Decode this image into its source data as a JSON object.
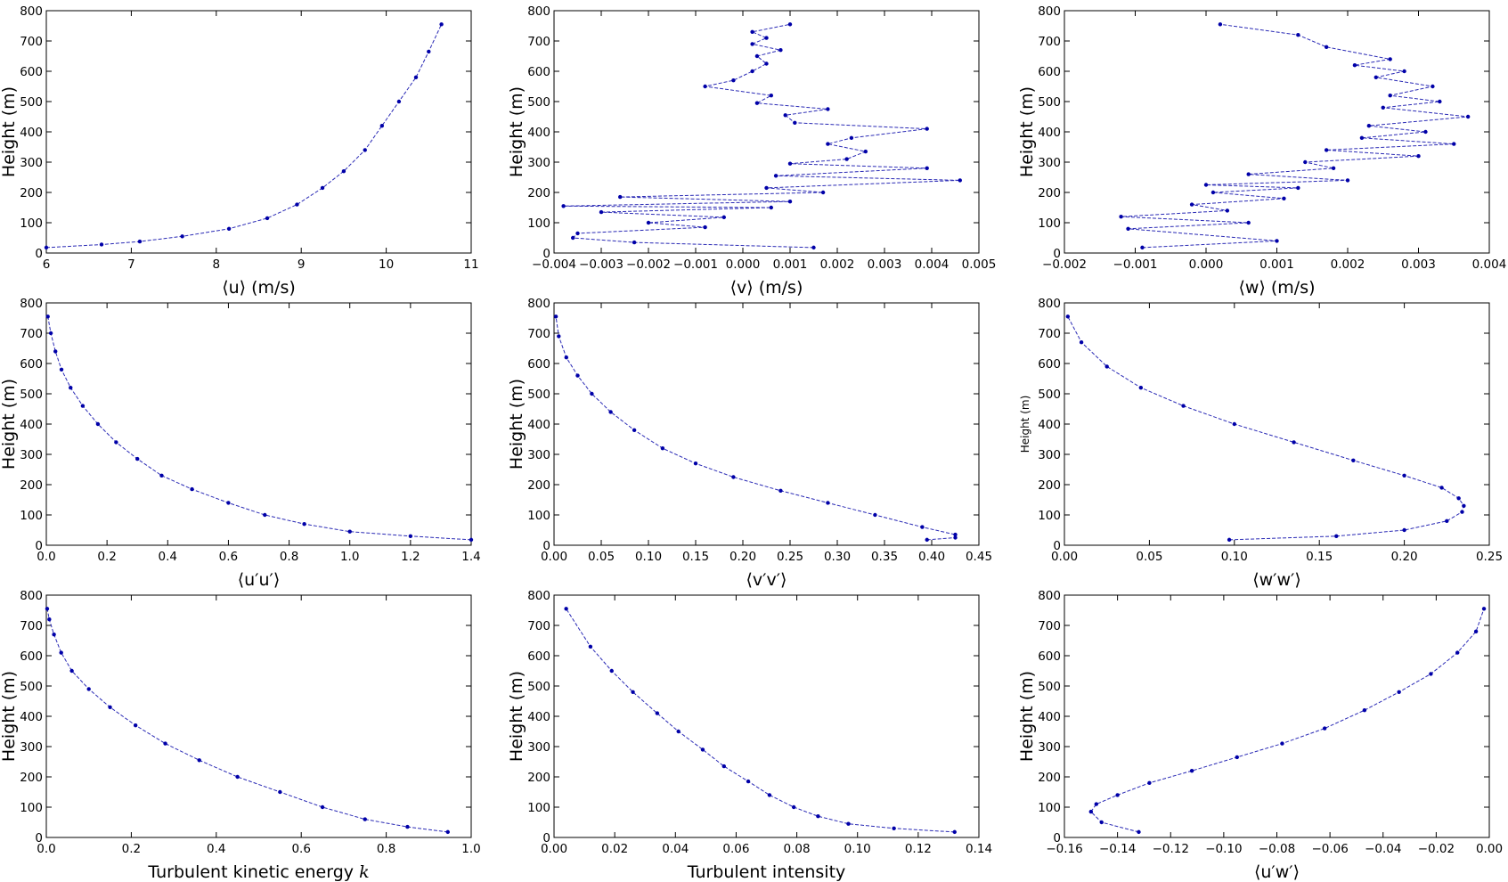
{
  "figure": {
    "description_free": true
  },
  "chart_data": [
    {
      "type": "line",
      "xlabel": "⟨u⟩ (m/s)",
      "ylabel": "Height (m)",
      "xlim": [
        6,
        11
      ],
      "ylim": [
        0,
        800
      ],
      "xticks": [
        "6",
        "7",
        "8",
        "9",
        "10",
        "11"
      ],
      "yticks": [
        "0",
        "100",
        "200",
        "300",
        "400",
        "500",
        "600",
        "700",
        "800"
      ],
      "x": [
        6.0,
        6.65,
        7.1,
        7.6,
        8.15,
        8.6,
        8.95,
        9.25,
        9.5,
        9.75,
        9.95,
        10.15,
        10.35,
        10.5,
        10.65
      ],
      "y": [
        18,
        28,
        38,
        55,
        80,
        115,
        160,
        215,
        270,
        340,
        420,
        500,
        580,
        665,
        755
      ]
    },
    {
      "type": "line",
      "xlabel": "⟨v⟩ (m/s)",
      "ylabel": "Height (m)",
      "xlim": [
        -0.004,
        0.005
      ],
      "ylim": [
        0,
        800
      ],
      "xticks": [
        "−0.004",
        "−0.003",
        "−0.002",
        "−0.001",
        "0.000",
        "0.001",
        "0.002",
        "0.003",
        "0.004",
        "0.005"
      ],
      "yticks": [
        "0",
        "100",
        "200",
        "300",
        "400",
        "500",
        "600",
        "700",
        "800"
      ],
      "x": [
        0.0015,
        -0.0023,
        -0.0036,
        -0.0035,
        -0.0008,
        -0.002,
        -0.0004,
        -0.003,
        0.0006,
        -0.0038,
        0.001,
        -0.0026,
        0.0017,
        0.0005,
        0.0046,
        0.0007,
        0.0039,
        0.001,
        0.0022,
        0.0026,
        0.0018,
        0.0023,
        0.0039,
        0.0011,
        0.0009,
        0.0018,
        0.0003,
        0.0006,
        -0.0008,
        -0.0002,
        0.0002,
        0.0005,
        0.0003,
        0.0008,
        0.0002,
        0.0005,
        0.0002,
        0.001
      ],
      "y": [
        18,
        35,
        50,
        65,
        85,
        100,
        118,
        135,
        150,
        155,
        170,
        185,
        200,
        215,
        240,
        255,
        280,
        295,
        310,
        335,
        360,
        380,
        410,
        430,
        455,
        475,
        495,
        520,
        550,
        570,
        600,
        625,
        650,
        670,
        690,
        710,
        730,
        755
      ]
    },
    {
      "type": "line",
      "xlabel": "⟨w⟩ (m/s)",
      "ylabel": "Height (m)",
      "xlim": [
        -0.002,
        0.004
      ],
      "ylim": [
        0,
        800
      ],
      "xticks": [
        "−0.002",
        "−0.001",
        "0.000",
        "0.001",
        "0.002",
        "0.003",
        "0.004"
      ],
      "yticks": [
        "0",
        "100",
        "200",
        "300",
        "400",
        "500",
        "600",
        "700",
        "800"
      ],
      "x": [
        -0.0009,
        0.001,
        -0.0011,
        0.0006,
        -0.0012,
        0.0003,
        -0.0002,
        0.0011,
        0.0001,
        0.0013,
        0.0,
        0.002,
        0.0006,
        0.0018,
        0.0014,
        0.003,
        0.0017,
        0.0035,
        0.0022,
        0.0031,
        0.0023,
        0.0037,
        0.0025,
        0.0033,
        0.0026,
        0.0032,
        0.0024,
        0.0028,
        0.0021,
        0.0026,
        0.0017,
        0.0013,
        0.0002
      ],
      "y": [
        18,
        40,
        80,
        100,
        120,
        140,
        160,
        180,
        200,
        215,
        225,
        240,
        260,
        280,
        300,
        320,
        340,
        360,
        380,
        400,
        420,
        450,
        480,
        500,
        520,
        550,
        580,
        600,
        620,
        640,
        680,
        720,
        755
      ]
    },
    {
      "type": "line",
      "xlabel": "⟨u′u′⟩",
      "ylabel": "Height (m)",
      "xlim": [
        0.0,
        1.4
      ],
      "ylim": [
        0,
        800
      ],
      "xticks": [
        "0.0",
        "0.2",
        "0.4",
        "0.6",
        "0.8",
        "1.0",
        "1.2",
        "1.4"
      ],
      "yticks": [
        "0",
        "100",
        "200",
        "300",
        "400",
        "500",
        "600",
        "700",
        "800"
      ],
      "x": [
        1.4,
        1.2,
        1.0,
        0.85,
        0.72,
        0.6,
        0.48,
        0.38,
        0.3,
        0.23,
        0.17,
        0.12,
        0.08,
        0.05,
        0.03,
        0.015,
        0.005
      ],
      "y": [
        18,
        30,
        45,
        70,
        100,
        140,
        185,
        230,
        285,
        340,
        400,
        460,
        520,
        580,
        640,
        700,
        755
      ]
    },
    {
      "type": "line",
      "xlabel": "⟨v′v′⟩",
      "ylabel": "Height (m)",
      "xlim": [
        0.0,
        0.45
      ],
      "ylim": [
        0,
        800
      ],
      "xticks": [
        "0.00",
        "0.05",
        "0.10",
        "0.15",
        "0.20",
        "0.25",
        "0.30",
        "0.35",
        "0.40",
        "0.45"
      ],
      "yticks": [
        "0",
        "100",
        "200",
        "300",
        "400",
        "500",
        "600",
        "700",
        "800"
      ],
      "x": [
        0.395,
        0.425,
        0.425,
        0.39,
        0.34,
        0.29,
        0.24,
        0.19,
        0.15,
        0.115,
        0.085,
        0.06,
        0.04,
        0.025,
        0.013,
        0.005,
        0.002
      ],
      "y": [
        18,
        25,
        35,
        60,
        100,
        140,
        180,
        225,
        270,
        320,
        380,
        440,
        500,
        560,
        620,
        690,
        755
      ]
    },
    {
      "type": "line",
      "xlabel": "⟨w′w′⟩",
      "ylabel": "Height (m)",
      "xlim": [
        0.0,
        0.25
      ],
      "ylim": [
        0,
        800
      ],
      "xticks": [
        "0.00",
        "0.05",
        "0.10",
        "0.15",
        "0.20",
        "0.25"
      ],
      "yticks": [
        "0",
        "100",
        "200",
        "300",
        "400",
        "500",
        "600",
        "700",
        "800"
      ],
      "x": [
        0.097,
        0.16,
        0.2,
        0.225,
        0.234,
        0.235,
        0.232,
        0.222,
        0.2,
        0.17,
        0.135,
        0.1,
        0.07,
        0.045,
        0.025,
        0.01,
        0.002
      ],
      "y": [
        18,
        30,
        50,
        80,
        110,
        130,
        155,
        190,
        230,
        280,
        340,
        400,
        460,
        520,
        590,
        670,
        755
      ]
    },
    {
      "type": "line",
      "xlabel": "Turbulent kinetic energy ",
      "xlabel_var": "k",
      "ylabel": "Height (m)",
      "xlim": [
        0.0,
        1.0
      ],
      "ylim": [
        0,
        800
      ],
      "xticks": [
        "0.0",
        "0.2",
        "0.4",
        "0.6",
        "0.8",
        "1.0"
      ],
      "yticks": [
        "0",
        "100",
        "200",
        "300",
        "400",
        "500",
        "600",
        "700",
        "800"
      ],
      "x": [
        0.945,
        0.85,
        0.75,
        0.65,
        0.55,
        0.45,
        0.36,
        0.28,
        0.21,
        0.15,
        0.1,
        0.06,
        0.035,
        0.018,
        0.007,
        0.002
      ],
      "y": [
        18,
        35,
        60,
        100,
        150,
        200,
        255,
        310,
        370,
        430,
        490,
        550,
        610,
        670,
        720,
        755
      ]
    },
    {
      "type": "line",
      "xlabel": "Turbulent intensity",
      "ylabel": "Height (m)",
      "xlim": [
        0.0,
        0.14
      ],
      "ylim": [
        0,
        800
      ],
      "xticks": [
        "0.00",
        "0.02",
        "0.04",
        "0.06",
        "0.08",
        "0.10",
        "0.12",
        "0.14"
      ],
      "yticks": [
        "0",
        "100",
        "200",
        "300",
        "400",
        "500",
        "600",
        "700",
        "800"
      ],
      "x": [
        0.132,
        0.112,
        0.097,
        0.087,
        0.079,
        0.071,
        0.064,
        0.056,
        0.049,
        0.041,
        0.034,
        0.026,
        0.019,
        0.012,
        0.004
      ],
      "y": [
        18,
        30,
        45,
        70,
        100,
        140,
        185,
        235,
        290,
        350,
        410,
        480,
        550,
        630,
        755
      ]
    },
    {
      "type": "line",
      "xlabel": "⟨u′w′⟩",
      "ylabel": "Height (m)",
      "xlim": [
        -0.16,
        0.0
      ],
      "ylim": [
        0,
        800
      ],
      "xticks": [
        "−0.16",
        "−0.14",
        "−0.12",
        "−0.10",
        "−0.08",
        "−0.06",
        "−0.04",
        "−0.02",
        "0.00"
      ],
      "yticks": [
        "0",
        "100",
        "200",
        "300",
        "400",
        "500",
        "600",
        "700",
        "800"
      ],
      "x": [
        -0.132,
        -0.146,
        -0.15,
        -0.148,
        -0.14,
        -0.128,
        -0.112,
        -0.095,
        -0.078,
        -0.062,
        -0.047,
        -0.034,
        -0.022,
        -0.012,
        -0.005,
        -0.002
      ],
      "y": [
        18,
        50,
        85,
        110,
        140,
        180,
        220,
        265,
        310,
        360,
        420,
        480,
        540,
        610,
        680,
        755
      ]
    }
  ]
}
